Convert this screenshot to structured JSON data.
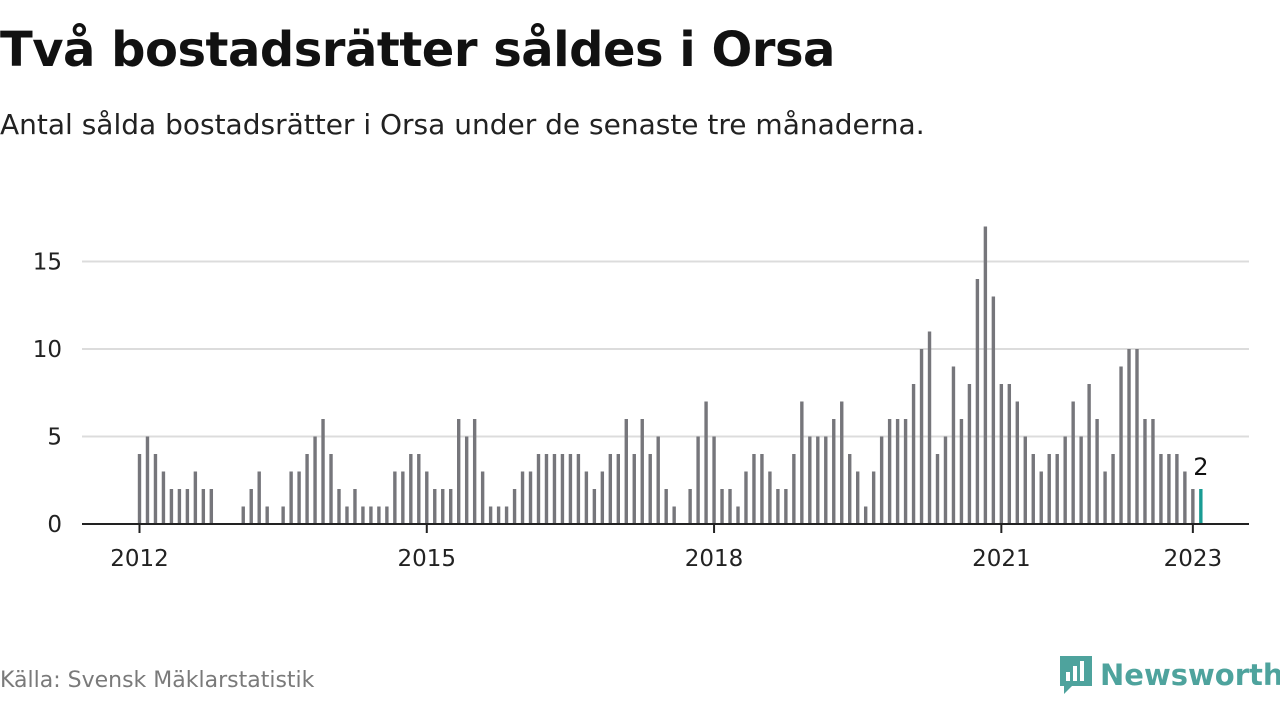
{
  "header": {
    "title": "Två bostadsrätter såldes i Orsa",
    "subtitle": "Antal sålda bostadsrätter i Orsa under de senaste tre månaderna."
  },
  "footer": {
    "source": "Källa: Svensk Mäklarstatistik",
    "brand": "Newsworthy"
  },
  "colors": {
    "bar": "#76767b",
    "highlight": "#1a9c94",
    "grid": "#dcdcdc",
    "axis": "#222222",
    "brand": "#4ea39d"
  },
  "chart_data": {
    "type": "bar",
    "title": "Två bostadsrätter såldes i Orsa",
    "subtitle": "Antal sålda bostadsrätter i Orsa under de senaste tre månaderna.",
    "x_start": "2012-01",
    "x_ticks": [
      "2012",
      "2015",
      "2018",
      "2021",
      "2023"
    ],
    "y_ticks": [
      0,
      5,
      10,
      15
    ],
    "ylim": [
      0,
      17
    ],
    "grid": true,
    "legend": "none",
    "values": [
      4,
      5,
      4,
      3,
      2,
      2,
      2,
      3,
      2,
      2,
      0,
      0,
      0,
      1,
      2,
      3,
      1,
      0,
      1,
      3,
      3,
      4,
      5,
      6,
      4,
      2,
      1,
      2,
      1,
      1,
      1,
      1,
      3,
      3,
      4,
      4,
      3,
      2,
      2,
      2,
      6,
      5,
      6,
      3,
      1,
      1,
      1,
      2,
      3,
      3,
      4,
      4,
      4,
      4,
      4,
      4,
      3,
      2,
      3,
      4,
      4,
      6,
      4,
      6,
      4,
      5,
      2,
      1,
      0,
      2,
      5,
      7,
      5,
      2,
      2,
      1,
      3,
      4,
      4,
      3,
      2,
      2,
      4,
      7,
      5,
      5,
      5,
      6,
      7,
      4,
      3,
      1,
      3,
      5,
      6,
      6,
      6,
      8,
      10,
      11,
      4,
      5,
      9,
      6,
      8,
      14,
      17,
      13,
      8,
      8,
      7,
      5,
      4,
      3,
      4,
      4,
      5,
      7,
      5,
      8,
      6,
      3,
      4,
      9,
      10,
      10,
      6,
      6,
      4,
      4,
      4,
      3,
      2,
      2
    ],
    "highlight_label": "2"
  }
}
